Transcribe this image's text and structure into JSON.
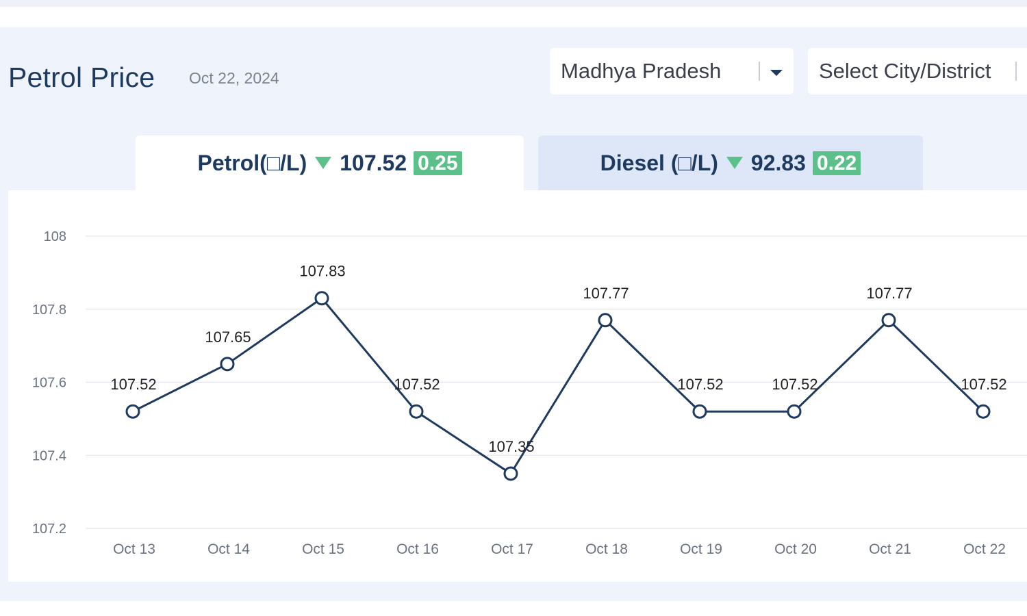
{
  "header": {
    "title": "Petrol Price",
    "date": "Oct 22, 2024"
  },
  "filters": {
    "state": "Madhya Pradesh",
    "city_placeholder": "Select City/District"
  },
  "tabs": [
    {
      "label": "Petrol(□/L)",
      "value": "107.52",
      "change": "0.25",
      "trend": "down",
      "active": true
    },
    {
      "label": "Diesel (□/L)",
      "value": "92.83",
      "change": "0.22",
      "trend": "down",
      "active": false
    }
  ],
  "colors": {
    "line": "#1e3a5f",
    "badge": "#5cc08a",
    "panel": "#eef3fc"
  },
  "chart_data": {
    "type": "line",
    "categories": [
      "Oct 13",
      "Oct 14",
      "Oct 15",
      "Oct 16",
      "Oct 17",
      "Oct 18",
      "Oct 19",
      "Oct 20",
      "Oct 21",
      "Oct 22"
    ],
    "series": [
      {
        "values": [
          107.52,
          107.65,
          107.83,
          107.52,
          107.35,
          107.77,
          107.52,
          107.52,
          107.77,
          107.52
        ]
      }
    ],
    "ylim": [
      107.2,
      108
    ],
    "yticks": [
      "108",
      "107.8",
      "107.6",
      "107.4",
      "107.2"
    ],
    "grid": true,
    "data_labels": [
      "107.52",
      "107.65",
      "107.83",
      "107.52",
      "107.35",
      "107.77",
      "107.52",
      "107.52",
      "107.77",
      "107.52"
    ]
  }
}
